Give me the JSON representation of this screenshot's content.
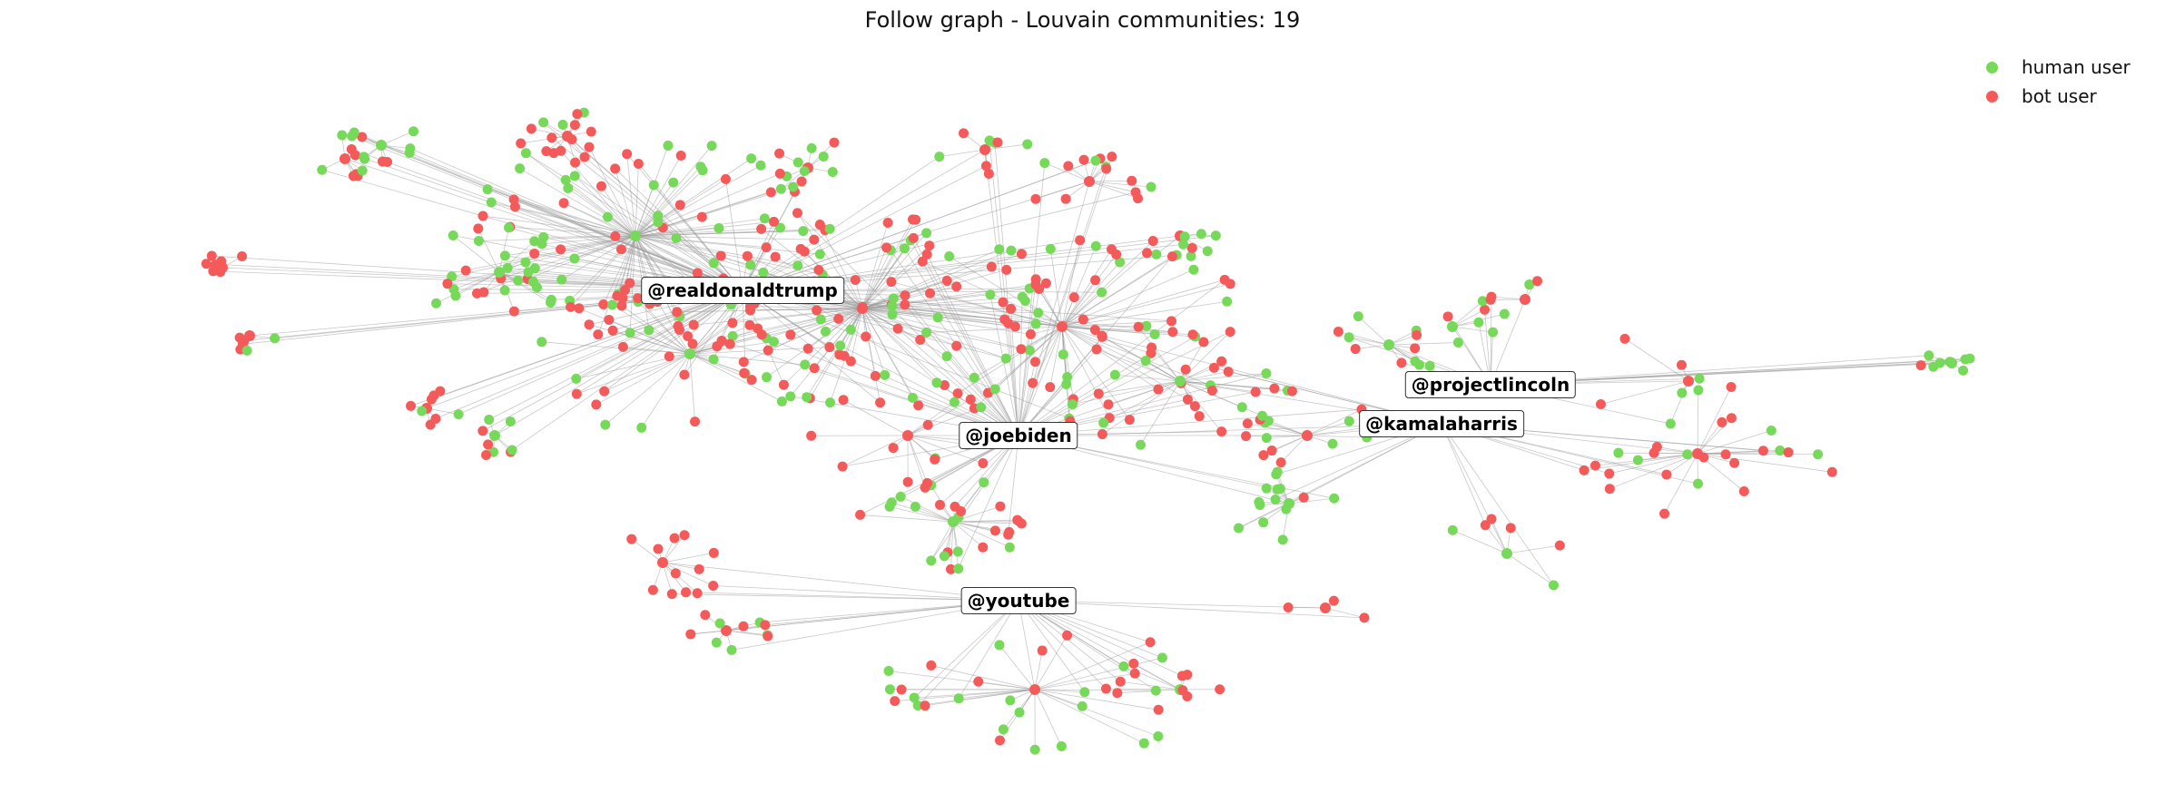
{
  "title": "Follow graph - Louvain communities: 19",
  "legend": {
    "human": {
      "label": "human user",
      "color": "#77d95a"
    },
    "bot": {
      "label": "bot user",
      "color": "#f45a5a"
    }
  },
  "colors": {
    "hub": "#000000",
    "edge": "#9a9a9a"
  },
  "hubs": [
    {
      "id": "trump",
      "label": "@realdonaldtrump"
    },
    {
      "id": "biden",
      "label": "@joebiden"
    },
    {
      "id": "youtube",
      "label": "@youtube"
    },
    {
      "id": "lincoln",
      "label": "@projectlincoln"
    },
    {
      "id": "harris",
      "label": "@kamalaharris"
    }
  ]
}
